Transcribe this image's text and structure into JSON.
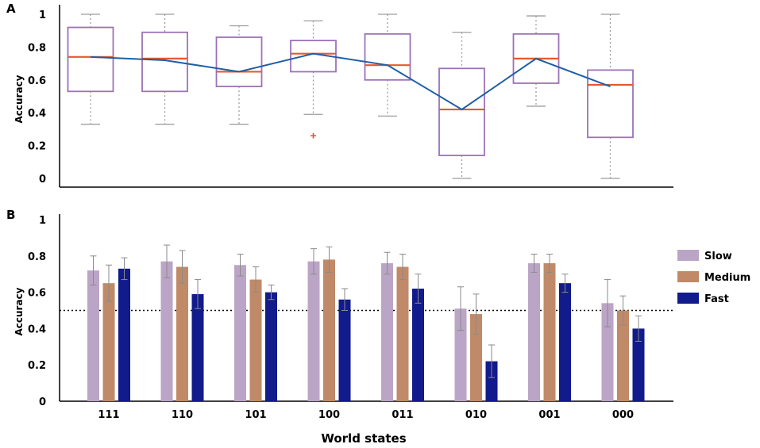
{
  "chart_data": [
    {
      "panel_label": "A",
      "type": "box",
      "ylabel": "Accuracy",
      "ylim": [
        0,
        1
      ],
      "yticks": [
        "0",
        "0.2",
        "0.4",
        "0.6",
        "0.8",
        "1"
      ],
      "categories": [
        "111",
        "110",
        "101",
        "100",
        "011",
        "010",
        "001",
        "000"
      ],
      "boxes": [
        {
          "min": 0.33,
          "q1": 0.53,
          "median": 0.74,
          "q3": 0.92,
          "max": 1.0,
          "mean": 0.74
        },
        {
          "min": 0.33,
          "q1": 0.53,
          "median": 0.73,
          "q3": 0.89,
          "max": 1.0,
          "mean": 0.72
        },
        {
          "min": 0.33,
          "q1": 0.56,
          "median": 0.65,
          "q3": 0.86,
          "max": 0.93,
          "mean": 0.65
        },
        {
          "min": 0.39,
          "q1": 0.65,
          "median": 0.76,
          "q3": 0.84,
          "max": 0.96,
          "mean": 0.76
        },
        {
          "min": 0.38,
          "q1": 0.6,
          "median": 0.69,
          "q3": 0.88,
          "max": 1.0,
          "mean": 0.69
        },
        {
          "min": 0.0,
          "q1": 0.14,
          "median": 0.42,
          "q3": 0.67,
          "max": 0.89,
          "mean": 0.42
        },
        {
          "min": 0.44,
          "q1": 0.58,
          "median": 0.73,
          "q3": 0.88,
          "max": 0.99,
          "mean": 0.73
        },
        {
          "min": 0.0,
          "q1": 0.25,
          "median": 0.57,
          "q3": 0.66,
          "max": 1.0,
          "mean": 0.56
        }
      ],
      "outliers": [
        {
          "category": "100",
          "value": 0.26
        }
      ],
      "colors": {
        "box": "#9b72b8",
        "median": "#e8582f",
        "mean_line": "#1f5fa6",
        "whisker": "#9e9e9e",
        "outlier": "#e8582f"
      }
    },
    {
      "panel_label": "B",
      "type": "bar",
      "ylabel": "Accuracy",
      "xlabel": "World states",
      "ylim": [
        0,
        1
      ],
      "yticks": [
        "0",
        "0.2",
        "0.4",
        "0.6",
        "0.8",
        "1"
      ],
      "reference_line": 0.5,
      "categories": [
        "111",
        "110",
        "101",
        "100",
        "011",
        "010",
        "001",
        "000"
      ],
      "series": [
        {
          "name": "Slow",
          "color": "#bba5c6",
          "values": [
            0.72,
            0.77,
            0.75,
            0.77,
            0.76,
            0.51,
            0.76,
            0.54
          ],
          "errors": [
            0.08,
            0.09,
            0.06,
            0.07,
            0.06,
            0.12,
            0.05,
            0.13
          ]
        },
        {
          "name": "Medium",
          "color": "#c08a68",
          "values": [
            0.65,
            0.74,
            0.67,
            0.78,
            0.74,
            0.48,
            0.76,
            0.5
          ],
          "errors": [
            0.1,
            0.09,
            0.07,
            0.07,
            0.07,
            0.11,
            0.05,
            0.08
          ]
        },
        {
          "name": "Fast",
          "color": "#111b8c",
          "values": [
            0.73,
            0.59,
            0.6,
            0.56,
            0.62,
            0.22,
            0.65,
            0.4
          ],
          "errors": [
            0.06,
            0.08,
            0.04,
            0.06,
            0.08,
            0.09,
            0.05,
            0.07
          ]
        }
      ],
      "legend_position": "right",
      "colors": {
        "errorbar": "#8a8a8a",
        "reference_line": "#000000"
      }
    }
  ]
}
